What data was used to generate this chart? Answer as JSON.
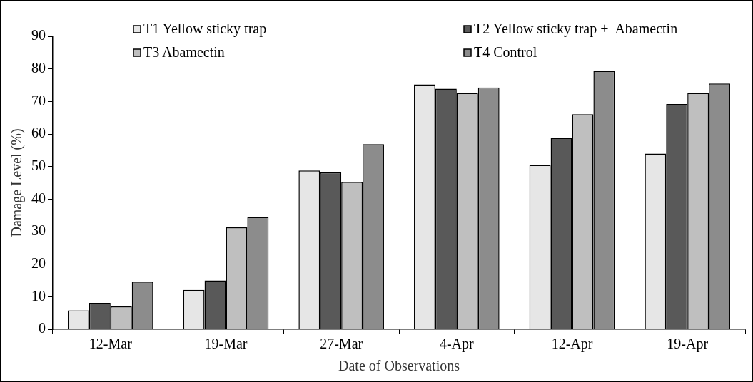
{
  "chart_data": {
    "type": "bar",
    "xlabel": "Date of Observations",
    "ylabel": "Damage Level (%)",
    "categories": [
      "12-Mar",
      "19-Mar",
      "27-Mar",
      "4-Apr",
      "12-Apr",
      "19-Apr"
    ],
    "series": [
      {
        "name": "T1 Yellow sticky trap",
        "color": "#e6e6e6",
        "values": [
          5.8,
          12.1,
          48.8,
          75.2,
          50.5,
          54.0
        ]
      },
      {
        "name": "T2 Yellow sticky trap +  Abamectin",
        "color": "#595959",
        "values": [
          8.1,
          15.0,
          48.2,
          73.9,
          58.8,
          69.2
        ]
      },
      {
        "name": "T3 Abamectin",
        "color": "#bfbfbf",
        "values": [
          7.0,
          31.3,
          45.3,
          72.6,
          66.1,
          72.6
        ]
      },
      {
        "name": "T4 Control",
        "color": "#8c8c8c",
        "values": [
          14.6,
          34.5,
          56.9,
          74.3,
          79.4,
          75.5
        ]
      }
    ],
    "ylim": [
      0,
      90
    ],
    "yticks": [
      0,
      10,
      20,
      30,
      40,
      50,
      60,
      70,
      80,
      90
    ],
    "grid": false,
    "legend": "top"
  }
}
